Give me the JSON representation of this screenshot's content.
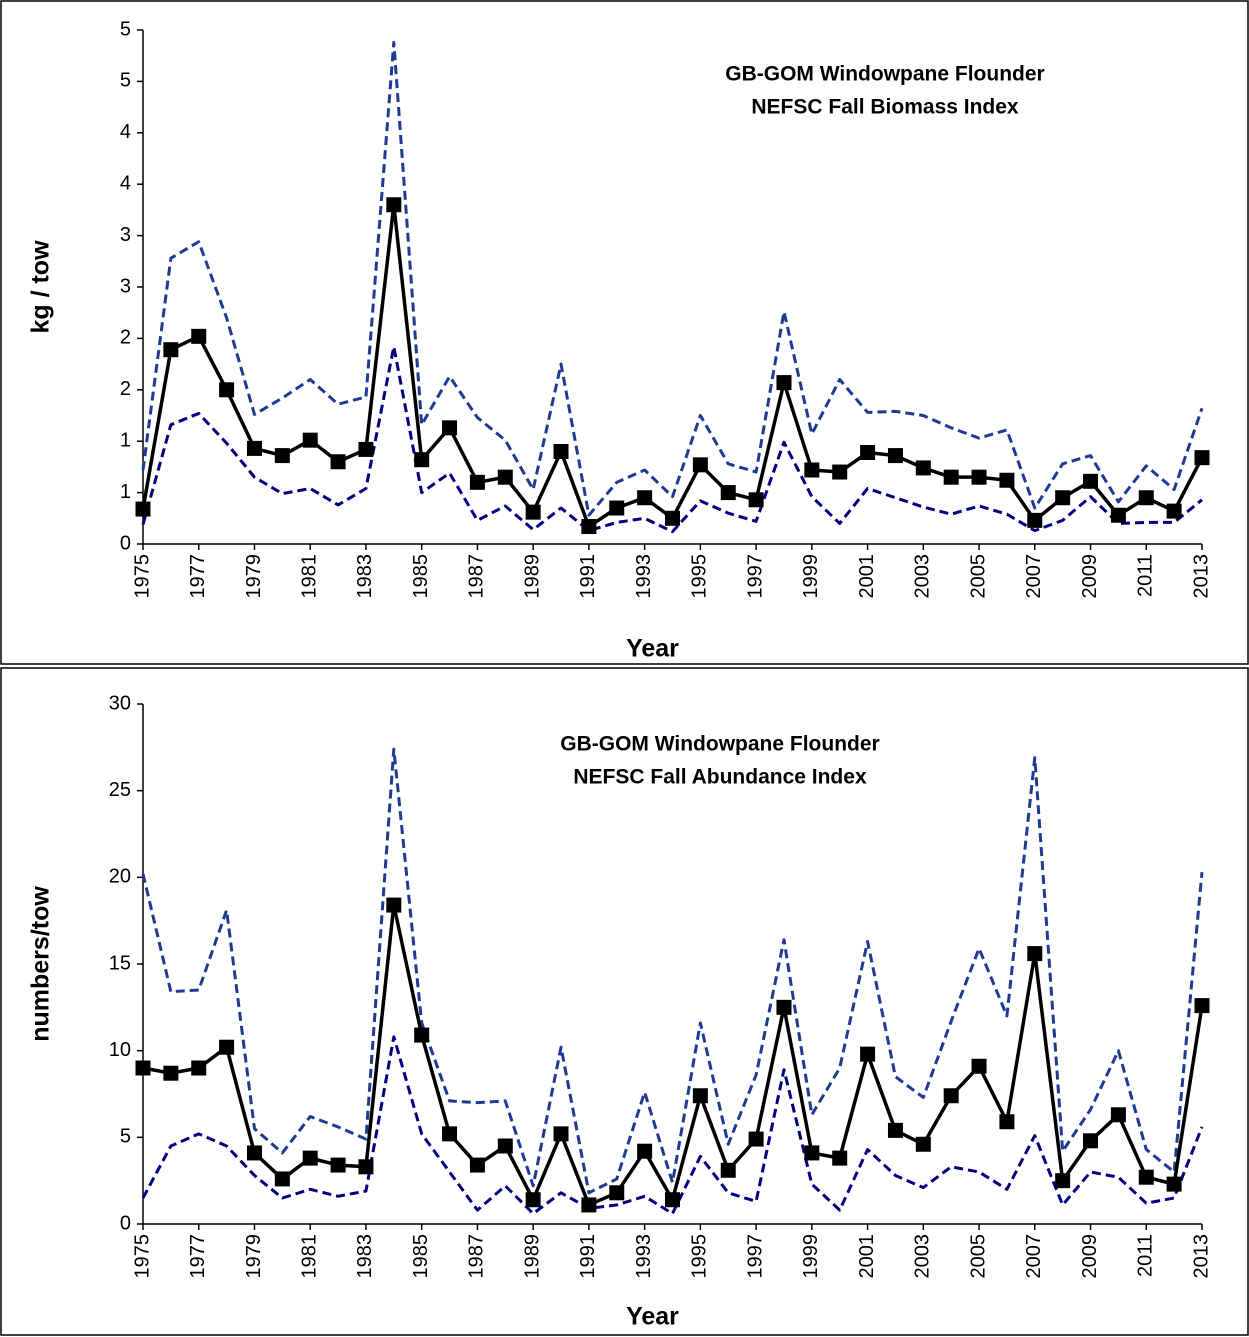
{
  "chart_data": [
    {
      "type": "line",
      "title": "GB-GOM Windowpane Flounder",
      "subtitle": "NEFSC Fall  Biomass Index",
      "x_label": "Year",
      "y_label": "kg / tow",
      "x": [
        1975,
        1976,
        1977,
        1978,
        1979,
        1980,
        1981,
        1982,
        1983,
        1984,
        1985,
        1986,
        1987,
        1988,
        1989,
        1990,
        1991,
        1992,
        1993,
        1994,
        1995,
        1996,
        1997,
        1998,
        1999,
        2000,
        2001,
        2002,
        2003,
        2004,
        2005,
        2006,
        2007,
        2008,
        2009,
        2010,
        2011,
        2012,
        2013
      ],
      "xlim": [
        1975,
        2013
      ],
      "xticks": [
        1975,
        1977,
        1979,
        1981,
        1983,
        1985,
        1987,
        1989,
        1991,
        1993,
        1995,
        1997,
        1999,
        2001,
        2003,
        2005,
        2007,
        2009,
        2011,
        2013
      ],
      "ylim": [
        0,
        5
      ],
      "yticks": [
        0,
        {
          "value": 0.5,
          "label": "1"
        },
        1,
        {
          "value": 1.5,
          "label": "2"
        },
        2,
        {
          "value": 2.5,
          "label": "3"
        },
        3,
        {
          "value": 3.5,
          "label": "4"
        },
        4,
        {
          "value": 4.5,
          "label": "5"
        },
        5
      ],
      "series": [
        {
          "color": "#1f3a93",
          "dash": true,
          "values": [
            0.72,
            2.78,
            2.94,
            2.2,
            1.26,
            1.42,
            1.6,
            1.36,
            1.43,
            4.88,
            1.16,
            1.63,
            1.23,
            1.01,
            0.53,
            1.75,
            0.28,
            0.6,
            0.72,
            0.46,
            1.25,
            0.78,
            0.7,
            2.26,
            1.07,
            1.6,
            1.28,
            1.29,
            1.25,
            1.13,
            1.03,
            1.11,
            0.35,
            0.78,
            0.86,
            0.41,
            0.76,
            0.53,
            1.32
          ]
        },
        {
          "color": "#000080",
          "dash": true,
          "values": [
            0.19,
            1.16,
            1.27,
            0.98,
            0.65,
            0.49,
            0.54,
            0.38,
            0.54,
            1.92,
            0.5,
            0.69,
            0.23,
            0.37,
            0.14,
            0.35,
            0.13,
            0.21,
            0.25,
            0.12,
            0.42,
            0.3,
            0.22,
            0.99,
            0.46,
            0.2,
            0.54,
            0.45,
            0.36,
            0.29,
            0.37,
            0.29,
            0.13,
            0.23,
            0.46,
            0.2,
            0.21,
            0.21,
            0.43
          ]
        },
        {
          "color": "#000000",
          "markers": true,
          "values": [
            0.34,
            1.89,
            2.02,
            1.5,
            0.93,
            0.86,
            1.01,
            0.8,
            0.92,
            3.3,
            0.82,
            1.13,
            0.6,
            0.65,
            0.31,
            0.9,
            0.17,
            0.35,
            0.45,
            0.25,
            0.77,
            0.5,
            0.43,
            1.57,
            0.72,
            0.7,
            0.89,
            0.86,
            0.74,
            0.65,
            0.65,
            0.62,
            0.23,
            0.45,
            0.61,
            0.28,
            0.45,
            0.32,
            0.84
          ]
        }
      ]
    },
    {
      "type": "line",
      "title": "GB-GOM Windowpane Flounder",
      "subtitle": "NEFSC Fall  Abundance Index",
      "x_label": "Year",
      "y_label": "numbers/tow",
      "x": [
        1975,
        1976,
        1977,
        1978,
        1979,
        1980,
        1981,
        1982,
        1983,
        1984,
        1985,
        1986,
        1987,
        1988,
        1989,
        1990,
        1991,
        1992,
        1993,
        1994,
        1995,
        1996,
        1997,
        1998,
        1999,
        2000,
        2001,
        2002,
        2003,
        2004,
        2005,
        2006,
        2007,
        2008,
        2009,
        2010,
        2011,
        2012,
        2013
      ],
      "xlim": [
        1975,
        2013
      ],
      "xticks": [
        1975,
        1977,
        1979,
        1981,
        1983,
        1985,
        1987,
        1989,
        1991,
        1993,
        1995,
        1997,
        1999,
        2001,
        2003,
        2005,
        2007,
        2009,
        2011,
        2013
      ],
      "ylim": [
        0,
        30
      ],
      "yticks": [
        0,
        5,
        10,
        15,
        20,
        25,
        30
      ],
      "series": [
        {
          "color": "#1f3a93",
          "dash": true,
          "values": [
            20.2,
            13.4,
            13.5,
            18.1,
            5.5,
            4.1,
            6.2,
            5.6,
            4.9,
            27.4,
            11.6,
            7.1,
            7.0,
            7.1,
            2.2,
            10.2,
            1.8,
            2.6,
            7.6,
            2.4,
            11.6,
            4.6,
            8.6,
            16.4,
            6.3,
            9.0,
            16.3,
            8.5,
            7.3,
            11.7,
            15.9,
            12.0,
            26.9,
            4.2,
            6.6,
            10.0,
            4.3,
            3.0,
            20.3
          ]
        },
        {
          "color": "#000080",
          "dash": true,
          "values": [
            1.5,
            4.5,
            5.2,
            4.5,
            2.8,
            1.5,
            2.0,
            1.6,
            1.9,
            10.8,
            5.2,
            3.0,
            0.8,
            2.2,
            0.6,
            1.8,
            0.9,
            1.1,
            1.6,
            0.6,
            3.9,
            1.8,
            1.3,
            8.9,
            2.3,
            0.8,
            4.3,
            2.8,
            2.1,
            3.3,
            3.0,
            2.0,
            5.1,
            1.1,
            3.0,
            2.7,
            1.2,
            1.5,
            5.6
          ]
        },
        {
          "color": "#000000",
          "markers": true,
          "values": [
            9.0,
            8.7,
            9.0,
            10.2,
            4.1,
            2.6,
            3.8,
            3.4,
            3.3,
            18.4,
            10.9,
            5.2,
            3.4,
            4.5,
            1.4,
            5.2,
            1.1,
            1.8,
            4.2,
            1.4,
            7.4,
            3.1,
            4.9,
            12.5,
            4.1,
            3.8,
            9.8,
            5.4,
            4.6,
            7.4,
            9.1,
            5.9,
            15.6,
            2.5,
            4.8,
            6.3,
            2.7,
            2.3,
            12.6
          ]
        }
      ]
    }
  ]
}
